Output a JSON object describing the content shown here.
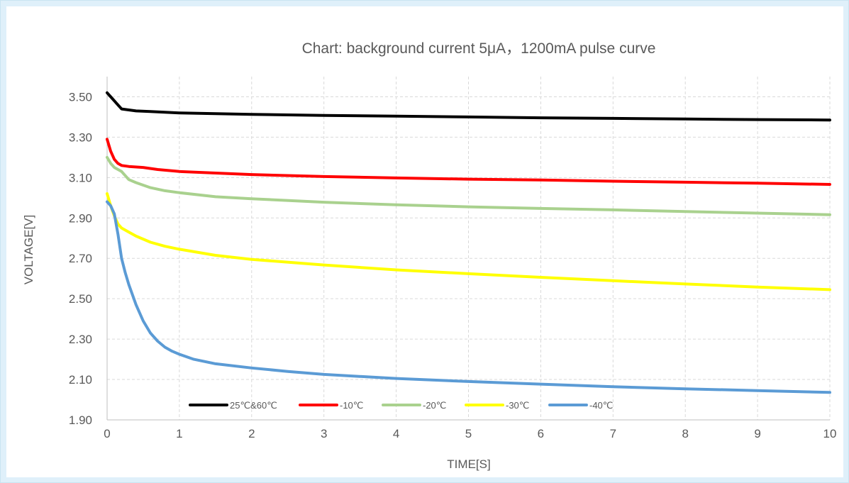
{
  "chart_data": {
    "type": "line",
    "title": "Chart: background current 5μA，1200mA pulse curve",
    "xlabel": "TIME[S]",
    "ylabel": "VOLTAGE[V]",
    "xlim": [
      0,
      10
    ],
    "ylim": [
      1.9,
      3.6
    ],
    "x_ticks": [
      "0",
      "1",
      "2",
      "3",
      "4",
      "5",
      "6",
      "7",
      "8",
      "9",
      "10"
    ],
    "y_ticks": [
      "1.90",
      "2.10",
      "2.30",
      "2.50",
      "2.70",
      "2.90",
      "3.10",
      "3.30",
      "3.50"
    ],
    "grid": true,
    "legend_position": "bottom-left, inside plot",
    "series": [
      {
        "name": "25℃&60℃",
        "color": "#000000",
        "x": [
          0,
          0.05,
          0.1,
          0.15,
          0.2,
          0.3,
          0.4,
          0.6,
          1,
          2,
          3,
          4,
          5,
          6,
          7,
          8,
          9,
          10
        ],
        "y": [
          3.52,
          3.5,
          3.48,
          3.46,
          3.44,
          3.435,
          3.43,
          3.427,
          3.42,
          3.413,
          3.408,
          3.404,
          3.4,
          3.396,
          3.393,
          3.39,
          3.387,
          3.385
        ]
      },
      {
        "name": "-10℃",
        "color": "#ff0000",
        "x": [
          0,
          0.05,
          0.1,
          0.15,
          0.2,
          0.3,
          0.5,
          0.7,
          1,
          2,
          3,
          4,
          5,
          6,
          7,
          8,
          9,
          10
        ],
        "y": [
          3.29,
          3.23,
          3.19,
          3.17,
          3.16,
          3.155,
          3.15,
          3.14,
          3.13,
          3.115,
          3.105,
          3.098,
          3.092,
          3.088,
          3.082,
          3.077,
          3.072,
          3.066
        ]
      },
      {
        "name": "-20℃",
        "color": "#a9d18e",
        "x": [
          0,
          0.05,
          0.1,
          0.2,
          0.3,
          0.4,
          0.6,
          0.8,
          1,
          1.5,
          2,
          3,
          4,
          5,
          6,
          7,
          8,
          9,
          10
        ],
        "y": [
          3.2,
          3.17,
          3.15,
          3.13,
          3.09,
          3.075,
          3.05,
          3.035,
          3.025,
          3.005,
          2.995,
          2.978,
          2.965,
          2.955,
          2.947,
          2.94,
          2.932,
          2.924,
          2.916
        ]
      },
      {
        "name": "-30℃",
        "color": "#ffff00",
        "x": [
          0,
          0.05,
          0.1,
          0.15,
          0.2,
          0.3,
          0.4,
          0.6,
          0.8,
          1,
          1.5,
          2,
          3,
          4,
          5,
          6,
          7,
          8,
          9,
          10
        ],
        "y": [
          3.02,
          2.96,
          2.91,
          2.87,
          2.85,
          2.83,
          2.81,
          2.78,
          2.76,
          2.745,
          2.715,
          2.695,
          2.667,
          2.643,
          2.624,
          2.606,
          2.589,
          2.573,
          2.558,
          2.545
        ]
      },
      {
        "name": "-40℃",
        "color": "#5b9bd5",
        "x": [
          0,
          0.05,
          0.1,
          0.15,
          0.2,
          0.25,
          0.3,
          0.4,
          0.5,
          0.6,
          0.7,
          0.8,
          0.9,
          1,
          1.2,
          1.5,
          2,
          2.5,
          3,
          4,
          5,
          6,
          7,
          8,
          9,
          10
        ],
        "y": [
          2.98,
          2.96,
          2.92,
          2.82,
          2.7,
          2.63,
          2.57,
          2.47,
          2.39,
          2.33,
          2.29,
          2.26,
          2.24,
          2.225,
          2.2,
          2.178,
          2.157,
          2.14,
          2.125,
          2.105,
          2.09,
          2.077,
          2.064,
          2.054,
          2.045,
          2.036
        ]
      }
    ]
  }
}
